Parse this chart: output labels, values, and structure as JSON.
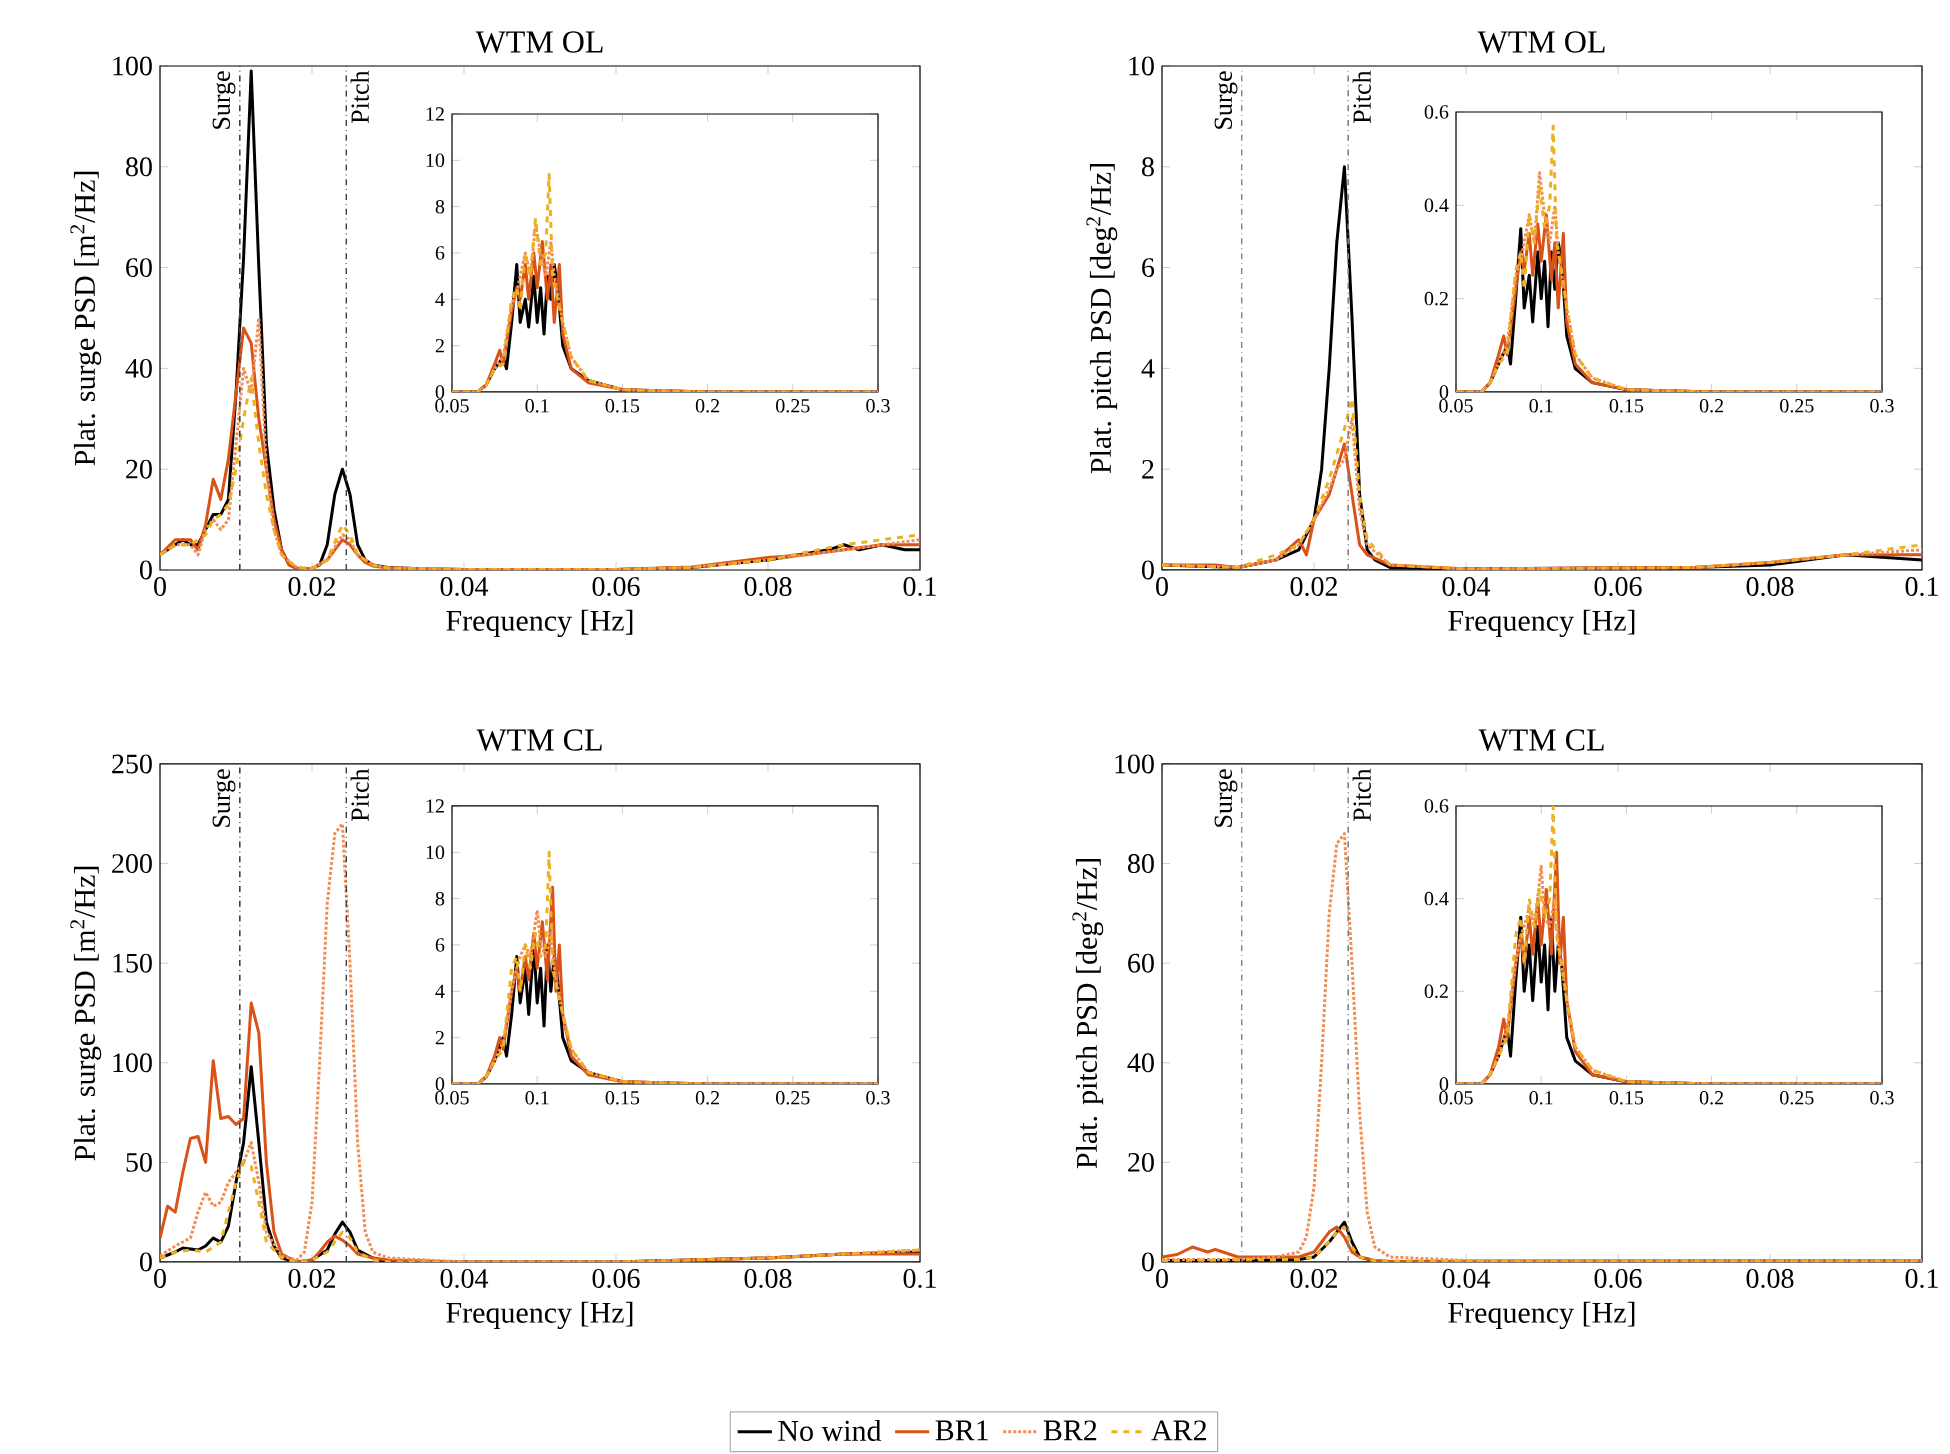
{
  "chart_data": [
    {
      "type": "line",
      "title": "WTM OL",
      "xlabel": "Frequency [Hz]",
      "ylabel": "Plat. surge PSD [m$^{2}$/Hz]",
      "xlim": [
        0,
        0.1
      ],
      "ylim": [
        0,
        100
      ],
      "xticks": [
        0,
        0.02,
        0.04,
        0.06,
        0.08,
        0.1
      ],
      "yticks": [
        0,
        20,
        40,
        60,
        80,
        100
      ],
      "grid": false,
      "marker": "none",
      "legend": "bottom",
      "ref_lines": [
        {
          "axis": "x",
          "value": 0.0105,
          "label": "Surge",
          "color": "#404040",
          "line_style": "dashdot"
        },
        {
          "axis": "x",
          "value": 0.0245,
          "label": "Pitch",
          "color": "#404040",
          "line_style": "dashdot"
        }
      ],
      "series": [
        {
          "name": "No wind",
          "color": "#000000",
          "line_style": "solid",
          "x": [
            0,
            0.002,
            0.003,
            0.004,
            0.005,
            0.006,
            0.007,
            0.008,
            0.009,
            0.01,
            0.011,
            0.012,
            0.013,
            0.014,
            0.015,
            0.016,
            0.017,
            0.018,
            0.02,
            0.021,
            0.022,
            0.023,
            0.024,
            0.025,
            0.026,
            0.027,
            0.028,
            0.03,
            0.035,
            0.04,
            0.06,
            0.07,
            0.08,
            0.085,
            0.088,
            0.09,
            0.092,
            0.095,
            0.098,
            0.1
          ],
          "values": [
            3,
            5,
            6,
            5,
            5,
            8,
            11,
            11,
            14,
            35,
            62,
            99,
            60,
            25,
            12,
            4,
            1,
            0.3,
            0.3,
            1,
            5,
            15,
            20,
            15,
            5,
            2,
            1,
            0.5,
            0.2,
            0.1,
            0.1,
            0.5,
            2,
            null,
            4,
            5,
            4,
            5,
            4,
            4
          ]
        },
        {
          "name": "BR1",
          "color": "#d95319",
          "line_style": "solid",
          "x": [
            0,
            0.002,
            0.004,
            0.005,
            0.006,
            0.007,
            0.008,
            0.009,
            0.01,
            0.011,
            0.012,
            0.013,
            0.014,
            0.015,
            0.016,
            0.017,
            0.018,
            0.02,
            0.022,
            0.023,
            0.024,
            0.025,
            0.026,
            0.027,
            0.028,
            0.03,
            0.04,
            0.06,
            0.07,
            0.08,
            0.085,
            0.09,
            0.095,
            0.1
          ],
          "values": [
            3,
            6,
            6,
            4,
            9,
            18,
            14,
            22,
            35,
            48,
            45,
            30,
            20,
            10,
            4,
            1,
            0.3,
            0.3,
            2,
            4,
            6,
            5,
            3,
            1.5,
            0.8,
            0.4,
            0.1,
            0.1,
            0.6,
            2.5,
            3,
            4,
            5,
            5
          ]
        },
        {
          "name": "BR2",
          "color": "#f28e54",
          "line_style": "dotted",
          "x": [
            0,
            0.002,
            0.004,
            0.005,
            0.006,
            0.007,
            0.008,
            0.009,
            0.01,
            0.011,
            0.012,
            0.013,
            0.014,
            0.015,
            0.016,
            0.018,
            0.02,
            0.022,
            0.024,
            0.025,
            0.026,
            0.028,
            0.03,
            0.04,
            0.06,
            0.07,
            0.08,
            0.09,
            0.1
          ],
          "values": [
            3,
            5,
            5,
            3,
            8,
            10,
            8,
            10,
            25,
            40,
            35,
            50,
            20,
            8,
            3,
            0.5,
            0.3,
            2,
            7,
            6,
            3,
            1,
            0.4,
            0.1,
            0.1,
            0.5,
            2,
            4,
            6
          ]
        },
        {
          "name": "AR2",
          "color": "#edb120",
          "line_style": "dashed",
          "x": [
            0,
            0.002,
            0.004,
            0.006,
            0.007,
            0.008,
            0.009,
            0.01,
            0.011,
            0.012,
            0.013,
            0.014,
            0.015,
            0.016,
            0.018,
            0.02,
            0.022,
            0.024,
            0.025,
            0.026,
            0.028,
            0.03,
            0.04,
            0.06,
            0.07,
            0.08,
            0.09,
            0.1
          ],
          "values": [
            3,
            5,
            5,
            7,
            10,
            11,
            13,
            20,
            30,
            38,
            25,
            15,
            8,
            3,
            0.5,
            0.3,
            2,
            9,
            7,
            3,
            1,
            0.4,
            0.1,
            0.1,
            0.5,
            2,
            5,
            7
          ]
        }
      ]
    },
    {
      "type": "line",
      "xlim": [
        0.05,
        0.3
      ],
      "ylim": [
        0,
        12
      ],
      "xticks": [
        0.05,
        0.1,
        0.15,
        0.2,
        0.25,
        0.3
      ],
      "yticks": [
        0,
        2,
        4,
        6,
        8,
        10,
        12
      ],
      "grid": false,
      "marker": "none",
      "series": [
        {
          "color": "#000000",
          "line_style": "solid",
          "x": [
            0.05,
            0.065,
            0.07,
            0.075,
            0.08,
            0.082,
            0.085,
            0.088,
            0.09,
            0.093,
            0.095,
            0.098,
            0.1,
            0.102,
            0.104,
            0.106,
            0.108,
            0.11,
            0.112,
            0.115,
            0.12,
            0.13,
            0.15,
            0.2,
            0.3
          ],
          "values": [
            0,
            0,
            0.3,
            1,
            1.5,
            1,
            3,
            5.5,
            3,
            4,
            2.8,
            5,
            3,
            4.5,
            2.5,
            5,
            4,
            5.5,
            4.5,
            2,
            1,
            0.5,
            0.1,
            0,
            0
          ]
        },
        {
          "color": "#d95319",
          "line_style": "solid",
          "x": [
            0.05,
            0.065,
            0.07,
            0.075,
            0.078,
            0.08,
            0.085,
            0.088,
            0.09,
            0.093,
            0.095,
            0.098,
            0.1,
            0.103,
            0.106,
            0.108,
            0.11,
            0.113,
            0.115,
            0.12,
            0.13,
            0.15,
            0.2,
            0.3
          ],
          "values": [
            0,
            0,
            0.3,
            1.2,
            1.8,
            1.2,
            3.5,
            4.5,
            4,
            5.5,
            4,
            6,
            4.5,
            6.5,
            4,
            5.5,
            3,
            5.5,
            2.5,
            1,
            0.4,
            0.1,
            0,
            0
          ]
        },
        {
          "color": "#f28e54",
          "line_style": "dotted",
          "x": [
            0.05,
            0.065,
            0.07,
            0.075,
            0.08,
            0.085,
            0.088,
            0.09,
            0.093,
            0.096,
            0.099,
            0.102,
            0.105,
            0.108,
            0.11,
            0.115,
            0.12,
            0.13,
            0.15,
            0.2,
            0.3
          ],
          "values": [
            0,
            0,
            0.3,
            1,
            1.5,
            3.8,
            4.3,
            5,
            6,
            5,
            7.2,
            6,
            5,
            6.5,
            5,
            3,
            1.5,
            0.5,
            0.1,
            0,
            0
          ]
        },
        {
          "color": "#edb120",
          "line_style": "dashed",
          "x": [
            0.05,
            0.065,
            0.07,
            0.075,
            0.08,
            0.085,
            0.088,
            0.09,
            0.093,
            0.096,
            0.099,
            0.102,
            0.105,
            0.107,
            0.109,
            0.112,
            0.115,
            0.12,
            0.13,
            0.15,
            0.2,
            0.3
          ],
          "values": [
            0,
            0,
            0.3,
            1,
            1.2,
            4,
            4.5,
            3.5,
            6,
            5,
            7.5,
            5.5,
            6,
            9.4,
            5,
            4,
            3,
            1.5,
            0.5,
            0.1,
            0,
            0
          ]
        }
      ]
    },
    {
      "type": "line",
      "title": "WTM OL",
      "xlabel": "Frequency [Hz]",
      "ylabel": "Plat. pitch PSD [deg$^{2}$/Hz]",
      "xlim": [
        0,
        0.1
      ],
      "ylim": [
        0,
        10
      ],
      "xticks": [
        0,
        0.02,
        0.04,
        0.06,
        0.08,
        0.1
      ],
      "yticks": [
        0,
        2,
        4,
        6,
        8,
        10
      ],
      "grid": false,
      "marker": "none",
      "ref_lines": [
        {
          "axis": "x",
          "value": 0.0105,
          "label": "Surge",
          "color": "#808080",
          "line_style": "dashdot"
        },
        {
          "axis": "x",
          "value": 0.0245,
          "label": "Pitch",
          "color": "#808080",
          "line_style": "dashdot"
        }
      ],
      "series": [
        {
          "color": "#000000",
          "line_style": "solid",
          "x": [
            0,
            0.01,
            0.015,
            0.018,
            0.02,
            0.021,
            0.022,
            0.023,
            0.024,
            0.025,
            0.026,
            0.027,
            0.028,
            0.03,
            0.04,
            0.07,
            0.08,
            0.09,
            0.1
          ],
          "values": [
            0.1,
            0.05,
            0.2,
            0.4,
            1,
            2,
            4,
            6.5,
            8,
            5,
            1.5,
            0.4,
            0.2,
            0.05,
            0.02,
            0.05,
            0.1,
            0.3,
            0.2
          ]
        },
        {
          "color": "#d95319",
          "line_style": "solid",
          "x": [
            0,
            0.007,
            0.01,
            0.015,
            0.018,
            0.019,
            0.02,
            0.022,
            0.023,
            0.024,
            0.025,
            0.026,
            0.027,
            0.03,
            0.04,
            0.07,
            0.08,
            0.09,
            0.1
          ],
          "values": [
            0.1,
            0.1,
            0.05,
            0.2,
            0.6,
            0.3,
            1,
            1.5,
            2,
            2.5,
            1.5,
            0.5,
            0.3,
            0.1,
            0.02,
            0.05,
            0.15,
            0.3,
            0.3
          ]
        },
        {
          "color": "#f28e54",
          "line_style": "dotted",
          "x": [
            0,
            0.01,
            0.015,
            0.018,
            0.02,
            0.022,
            0.023,
            0.024,
            0.025,
            0.026,
            0.027,
            0.03,
            0.04,
            0.07,
            0.08,
            0.09,
            0.1
          ],
          "values": [
            0.1,
            0.05,
            0.2,
            0.5,
            1,
            1.6,
            2,
            2.2,
            3,
            1.2,
            0.5,
            0.1,
            0.02,
            0.05,
            0.15,
            0.3,
            0.4
          ]
        },
        {
          "color": "#edb120",
          "line_style": "dashed",
          "x": [
            0,
            0.01,
            0.015,
            0.018,
            0.02,
            0.022,
            0.023,
            0.024,
            0.025,
            0.026,
            0.027,
            0.03,
            0.04,
            0.07,
            0.08,
            0.09,
            0.1
          ],
          "values": [
            0.1,
            0.05,
            0.3,
            0.5,
            1,
            1.8,
            2.3,
            2.8,
            3.4,
            1.5,
            0.6,
            0.1,
            0.02,
            0.05,
            0.15,
            0.3,
            0.5
          ]
        }
      ]
    },
    {
      "type": "line",
      "xlim": [
        0.05,
        0.3
      ],
      "ylim": [
        0,
        0.6
      ],
      "xticks": [
        0.05,
        0.1,
        0.15,
        0.2,
        0.25,
        0.3
      ],
      "yticks": [
        0,
        0.2,
        0.4,
        0.6
      ],
      "grid": false,
      "marker": "none",
      "series": [
        {
          "color": "#000000",
          "line_style": "solid",
          "x": [
            0.05,
            0.065,
            0.07,
            0.075,
            0.08,
            0.082,
            0.085,
            0.088,
            0.09,
            0.093,
            0.095,
            0.098,
            0.1,
            0.102,
            0.104,
            0.106,
            0.108,
            0.11,
            0.112,
            0.115,
            0.12,
            0.13,
            0.15,
            0.2,
            0.3
          ],
          "values": [
            0,
            0,
            0.02,
            0.06,
            0.1,
            0.06,
            0.2,
            0.35,
            0.18,
            0.25,
            0.15,
            0.3,
            0.2,
            0.28,
            0.14,
            0.3,
            0.22,
            0.32,
            0.28,
            0.12,
            0.05,
            0.02,
            0.005,
            0,
            0
          ]
        },
        {
          "color": "#d95319",
          "line_style": "solid",
          "x": [
            0.05,
            0.065,
            0.07,
            0.075,
            0.078,
            0.08,
            0.085,
            0.088,
            0.09,
            0.093,
            0.095,
            0.098,
            0.1,
            0.103,
            0.106,
            0.108,
            0.11,
            0.113,
            0.115,
            0.12,
            0.13,
            0.15,
            0.2,
            0.3
          ],
          "values": [
            0,
            0,
            0.02,
            0.08,
            0.12,
            0.08,
            0.22,
            0.3,
            0.26,
            0.34,
            0.25,
            0.36,
            0.28,
            0.38,
            0.24,
            0.32,
            0.18,
            0.34,
            0.15,
            0.06,
            0.02,
            0.005,
            0,
            0
          ]
        },
        {
          "color": "#f28e54",
          "line_style": "dotted",
          "x": [
            0.05,
            0.065,
            0.07,
            0.075,
            0.08,
            0.085,
            0.088,
            0.09,
            0.093,
            0.096,
            0.099,
            0.102,
            0.105,
            0.108,
            0.11,
            0.115,
            0.12,
            0.13,
            0.15,
            0.2,
            0.3
          ],
          "values": [
            0,
            0,
            0.02,
            0.06,
            0.1,
            0.25,
            0.28,
            0.32,
            0.38,
            0.32,
            0.47,
            0.38,
            0.32,
            0.4,
            0.3,
            0.18,
            0.08,
            0.03,
            0.005,
            0,
            0
          ]
        },
        {
          "color": "#edb120",
          "line_style": "dashed",
          "x": [
            0.05,
            0.065,
            0.07,
            0.075,
            0.08,
            0.085,
            0.088,
            0.09,
            0.093,
            0.096,
            0.099,
            0.102,
            0.105,
            0.107,
            0.109,
            0.112,
            0.115,
            0.12,
            0.13,
            0.15,
            0.2,
            0.3
          ],
          "values": [
            0,
            0,
            0.02,
            0.06,
            0.08,
            0.26,
            0.3,
            0.22,
            0.38,
            0.32,
            0.44,
            0.35,
            0.4,
            0.57,
            0.32,
            0.26,
            0.18,
            0.08,
            0.03,
            0.005,
            0,
            0
          ]
        }
      ]
    },
    {
      "type": "line",
      "title": "WTM CL",
      "xlabel": "Frequency [Hz]",
      "ylabel": "Plat. surge PSD [m$^{2}$/Hz]",
      "xlim": [
        0,
        0.1
      ],
      "ylim": [
        0,
        250
      ],
      "xticks": [
        0,
        0.02,
        0.04,
        0.06,
        0.08,
        0.1
      ],
      "yticks": [
        0,
        50,
        100,
        150,
        200,
        250
      ],
      "grid": false,
      "marker": "none",
      "ref_lines": [
        {
          "axis": "x",
          "value": 0.0105,
          "label": "Surge",
          "color": "#404040",
          "line_style": "dashdot"
        },
        {
          "axis": "x",
          "value": 0.0245,
          "label": "Pitch",
          "color": "#404040",
          "line_style": "dashdot"
        }
      ],
      "series": [
        {
          "color": "#000000",
          "line_style": "solid",
          "x": [
            0,
            0.002,
            0.003,
            0.005,
            0.006,
            0.007,
            0.008,
            0.009,
            0.01,
            0.011,
            0.012,
            0.013,
            0.014,
            0.015,
            0.016,
            0.018,
            0.02,
            0.022,
            0.023,
            0.024,
            0.025,
            0.026,
            0.028,
            0.03,
            0.04,
            0.06,
            0.08,
            0.09,
            0.1
          ],
          "values": [
            2,
            5,
            7,
            6,
            8,
            12,
            10,
            18,
            40,
            60,
            98,
            60,
            20,
            8,
            2,
            0,
            1,
            6,
            14,
            20,
            15,
            6,
            2,
            0,
            0,
            0,
            2,
            4,
            5
          ]
        },
        {
          "color": "#d95319",
          "line_style": "solid",
          "x": [
            0,
            0.001,
            0.002,
            0.003,
            0.004,
            0.005,
            0.006,
            0.007,
            0.008,
            0.009,
            0.01,
            0.011,
            0.012,
            0.013,
            0.014,
            0.015,
            0.016,
            0.018,
            0.02,
            0.021,
            0.022,
            0.023,
            0.024,
            0.025,
            0.026,
            0.028,
            0.03,
            0.04,
            0.06,
            0.08,
            0.09,
            0.1
          ],
          "values": [
            12,
            28,
            25,
            45,
            62,
            63,
            50,
            101,
            72,
            73,
            69,
            72,
            130,
            115,
            50,
            15,
            4,
            0,
            1,
            5,
            10,
            13,
            11,
            8,
            4,
            2,
            1,
            0,
            0,
            2,
            4,
            4
          ]
        },
        {
          "color": "#f28e54",
          "line_style": "dotted",
          "x": [
            0,
            0.002,
            0.004,
            0.005,
            0.006,
            0.007,
            0.008,
            0.009,
            0.01,
            0.011,
            0.012,
            0.013,
            0.014,
            0.016,
            0.018,
            0.019,
            0.02,
            0.021,
            0.022,
            0.023,
            0.024,
            0.025,
            0.026,
            0.027,
            0.028,
            0.03,
            0.04,
            0.06,
            0.08,
            0.09,
            0.1
          ],
          "values": [
            3,
            8,
            12,
            25,
            35,
            28,
            30,
            40,
            45,
            50,
            60,
            40,
            15,
            3,
            1,
            5,
            30,
            100,
            180,
            215,
            220,
            150,
            60,
            15,
            5,
            2,
            0,
            0,
            2,
            4,
            6
          ]
        },
        {
          "color": "#edb120",
          "line_style": "dashed",
          "x": [
            0,
            0.002,
            0.004,
            0.006,
            0.008,
            0.009,
            0.01,
            0.011,
            0.012,
            0.013,
            0.014,
            0.016,
            0.018,
            0.02,
            0.022,
            0.024,
            0.025,
            0.026,
            0.028,
            0.03,
            0.04,
            0.06,
            0.08,
            0.09,
            0.1
          ],
          "values": [
            2,
            5,
            6,
            5,
            10,
            25,
            40,
            50,
            48,
            30,
            10,
            2,
            0,
            1,
            5,
            15,
            12,
            5,
            1,
            0,
            0,
            0,
            2,
            4,
            6
          ]
        }
      ]
    },
    {
      "type": "line",
      "xlim": [
        0.05,
        0.3
      ],
      "ylim": [
        0,
        12
      ],
      "xticks": [
        0.05,
        0.1,
        0.15,
        0.2,
        0.25,
        0.3
      ],
      "yticks": [
        0,
        2,
        4,
        6,
        8,
        10,
        12
      ],
      "grid": false,
      "marker": "none",
      "series": [
        {
          "color": "#000000",
          "line_style": "solid",
          "x": [
            0.05,
            0.065,
            0.07,
            0.075,
            0.08,
            0.082,
            0.085,
            0.088,
            0.09,
            0.093,
            0.095,
            0.098,
            0.1,
            0.102,
            0.104,
            0.106,
            0.108,
            0.11,
            0.112,
            0.115,
            0.12,
            0.13,
            0.15,
            0.2,
            0.3
          ],
          "values": [
            0,
            0,
            0.3,
            1,
            2,
            1.2,
            3,
            5.5,
            3.5,
            5,
            3,
            6,
            3.5,
            5,
            2.5,
            6,
            4,
            5.5,
            4.5,
            2,
            1,
            0.5,
            0.1,
            0,
            0
          ]
        },
        {
          "color": "#d95319",
          "line_style": "solid",
          "x": [
            0.05,
            0.065,
            0.07,
            0.075,
            0.078,
            0.08,
            0.085,
            0.088,
            0.09,
            0.093,
            0.095,
            0.098,
            0.1,
            0.103,
            0.106,
            0.109,
            0.111,
            0.113,
            0.115,
            0.12,
            0.13,
            0.15,
            0.2,
            0.3
          ],
          "values": [
            0,
            0,
            0.3,
            1.2,
            2,
            1.5,
            4,
            5,
            4,
            5.5,
            4.5,
            6.5,
            5,
            7,
            4.5,
            8.5,
            4,
            6,
            3,
            1.2,
            0.4,
            0.1,
            0,
            0
          ]
        },
        {
          "color": "#f28e54",
          "line_style": "dotted",
          "x": [
            0.05,
            0.065,
            0.07,
            0.075,
            0.08,
            0.085,
            0.088,
            0.09,
            0.093,
            0.096,
            0.1,
            0.102,
            0.105,
            0.108,
            0.11,
            0.115,
            0.12,
            0.13,
            0.15,
            0.2,
            0.3
          ],
          "values": [
            0,
            0,
            0.3,
            1,
            1.8,
            4,
            5,
            5.5,
            6,
            5.5,
            7.5,
            6,
            5.5,
            6.5,
            5,
            3,
            1.5,
            0.5,
            0.1,
            0,
            0
          ]
        },
        {
          "color": "#edb120",
          "line_style": "dashed",
          "x": [
            0.05,
            0.065,
            0.07,
            0.075,
            0.08,
            0.085,
            0.088,
            0.09,
            0.093,
            0.096,
            0.099,
            0.102,
            0.105,
            0.107,
            0.109,
            0.112,
            0.115,
            0.12,
            0.13,
            0.15,
            0.2,
            0.3
          ],
          "values": [
            0,
            0,
            0.3,
            1,
            1.5,
            5,
            5.5,
            4,
            6,
            5,
            6.5,
            5.5,
            6,
            10,
            5,
            4,
            3,
            1.5,
            0.5,
            0.1,
            0,
            0
          ]
        }
      ]
    },
    {
      "type": "line",
      "title": "WTM CL",
      "xlabel": "Frequency [Hz]",
      "ylabel": "Plat. pitch PSD [deg$^{2}$/Hz]",
      "xlim": [
        0,
        0.1
      ],
      "ylim": [
        0,
        100
      ],
      "xticks": [
        0,
        0.02,
        0.04,
        0.06,
        0.08,
        0.1
      ],
      "yticks": [
        0,
        20,
        40,
        60,
        80,
        100
      ],
      "grid": false,
      "marker": "none",
      "ref_lines": [
        {
          "axis": "x",
          "value": 0.0105,
          "label": "Surge",
          "color": "#808080",
          "line_style": "dashdot"
        },
        {
          "axis": "x",
          "value": 0.0245,
          "label": "Pitch",
          "color": "#808080",
          "line_style": "dashdot"
        }
      ],
      "series": [
        {
          "color": "#000000",
          "line_style": "solid",
          "x": [
            0,
            0.01,
            0.018,
            0.02,
            0.022,
            0.023,
            0.024,
            0.025,
            0.026,
            0.028,
            0.03,
            0.1
          ],
          "values": [
            0.3,
            0.3,
            0.5,
            1,
            4,
            6,
            8,
            4,
            1,
            0.2,
            0.1,
            0.2
          ]
        },
        {
          "color": "#d95319",
          "line_style": "solid",
          "x": [
            0,
            0.002,
            0.004,
            0.006,
            0.007,
            0.009,
            0.01,
            0.015,
            0.018,
            0.02,
            0.021,
            0.022,
            0.023,
            0.024,
            0.025,
            0.026,
            0.028,
            0.03,
            0.1
          ],
          "values": [
            1,
            1.5,
            3,
            2,
            2.5,
            1.5,
            1,
            1,
            1,
            2,
            4,
            6,
            7,
            5,
            2,
            1,
            0.3,
            0.1,
            0.2
          ]
        },
        {
          "color": "#f28e54",
          "line_style": "dotted",
          "x": [
            0,
            0.01,
            0.015,
            0.018,
            0.019,
            0.02,
            0.021,
            0.022,
            0.023,
            0.024,
            0.025,
            0.026,
            0.027,
            0.028,
            0.03,
            0.04,
            0.1
          ],
          "values": [
            0.5,
            0.5,
            1,
            2,
            5,
            15,
            40,
            70,
            84,
            86,
            60,
            30,
            10,
            3,
            1,
            0.3,
            0.3
          ]
        },
        {
          "color": "#edb120",
          "line_style": "dashed",
          "x": [
            0,
            0.018,
            0.02,
            0.022,
            0.023,
            0.024,
            0.025,
            0.026,
            0.028,
            0.1
          ],
          "values": [
            0.3,
            0.5,
            1,
            4,
            6,
            7,
            3,
            1,
            0.2,
            0.2
          ]
        }
      ]
    },
    {
      "type": "line",
      "xlim": [
        0.05,
        0.3
      ],
      "ylim": [
        0,
        0.6
      ],
      "xticks": [
        0.05,
        0.1,
        0.15,
        0.2,
        0.25,
        0.3
      ],
      "yticks": [
        0,
        0.2,
        0.4,
        0.6
      ],
      "grid": false,
      "marker": "none",
      "series": [
        {
          "color": "#000000",
          "line_style": "solid",
          "x": [
            0.05,
            0.065,
            0.07,
            0.075,
            0.08,
            0.082,
            0.085,
            0.088,
            0.09,
            0.093,
            0.095,
            0.098,
            0.1,
            0.102,
            0.104,
            0.106,
            0.108,
            0.11,
            0.112,
            0.115,
            0.12,
            0.13,
            0.15,
            0.2,
            0.3
          ],
          "values": [
            0,
            0,
            0.02,
            0.06,
            0.12,
            0.06,
            0.22,
            0.36,
            0.2,
            0.3,
            0.18,
            0.34,
            0.22,
            0.3,
            0.16,
            0.36,
            0.2,
            0.3,
            0.26,
            0.1,
            0.05,
            0.02,
            0.005,
            0,
            0
          ]
        },
        {
          "color": "#d95319",
          "line_style": "solid",
          "x": [
            0.05,
            0.065,
            0.07,
            0.075,
            0.078,
            0.08,
            0.085,
            0.088,
            0.09,
            0.093,
            0.095,
            0.098,
            0.1,
            0.103,
            0.106,
            0.109,
            0.111,
            0.113,
            0.115,
            0.12,
            0.13,
            0.15,
            0.2,
            0.3
          ],
          "values": [
            0,
            0,
            0.02,
            0.08,
            0.14,
            0.1,
            0.26,
            0.32,
            0.26,
            0.36,
            0.28,
            0.4,
            0.3,
            0.42,
            0.28,
            0.5,
            0.26,
            0.36,
            0.18,
            0.07,
            0.02,
            0.005,
            0,
            0
          ]
        },
        {
          "color": "#f28e54",
          "line_style": "dotted",
          "x": [
            0.05,
            0.065,
            0.07,
            0.075,
            0.08,
            0.085,
            0.088,
            0.09,
            0.093,
            0.096,
            0.1,
            0.102,
            0.105,
            0.108,
            0.11,
            0.115,
            0.12,
            0.13,
            0.15,
            0.2,
            0.3
          ],
          "values": [
            0,
            0,
            0.02,
            0.06,
            0.12,
            0.26,
            0.32,
            0.34,
            0.38,
            0.34,
            0.47,
            0.36,
            0.34,
            0.4,
            0.3,
            0.18,
            0.08,
            0.03,
            0.005,
            0,
            0
          ]
        },
        {
          "color": "#edb120",
          "line_style": "dashed",
          "x": [
            0.05,
            0.065,
            0.07,
            0.075,
            0.08,
            0.085,
            0.088,
            0.09,
            0.093,
            0.096,
            0.099,
            0.102,
            0.105,
            0.107,
            0.109,
            0.112,
            0.115,
            0.12,
            0.13,
            0.15,
            0.2,
            0.3
          ],
          "values": [
            0,
            0,
            0.02,
            0.06,
            0.1,
            0.32,
            0.36,
            0.26,
            0.4,
            0.34,
            0.42,
            0.36,
            0.4,
            0.6,
            0.32,
            0.26,
            0.18,
            0.08,
            0.03,
            0.005,
            0,
            0
          ]
        }
      ]
    }
  ]
}
